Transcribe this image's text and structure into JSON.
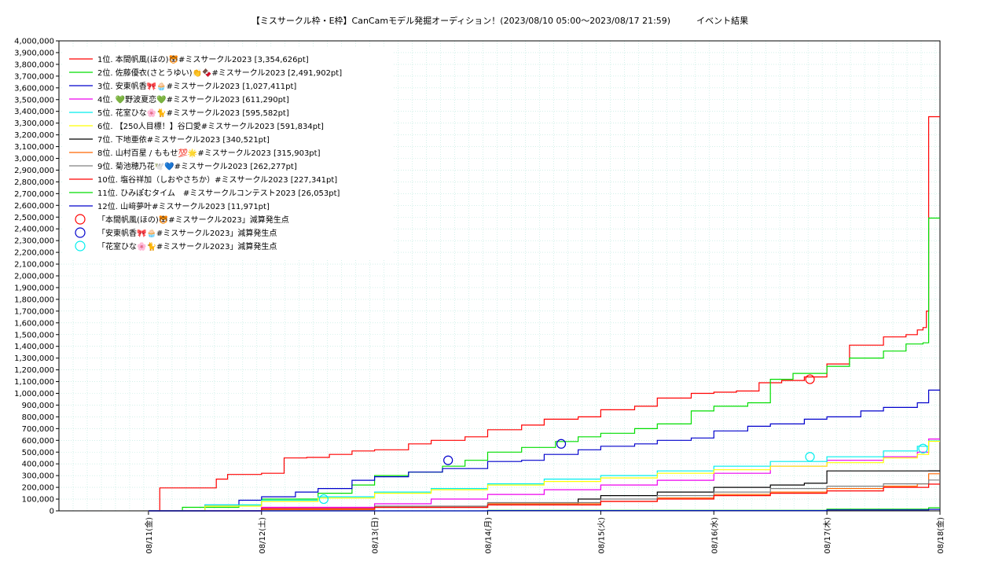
{
  "chart_data": {
    "type": "line",
    "title": "【ミスサークル枠・E枠】CanCamモデル発掘オーディション！(2023/08/10 05:00〜2023/08/17 21:59)　　　イベント結果",
    "xlabel": "",
    "ylabel": "",
    "ylim": [
      0,
      4000000
    ],
    "ytick_step": 100000,
    "x_range": [
      "08/10 05:00",
      "08/18 00:00"
    ],
    "x_tick_labels": [
      "08/11(金)",
      "08/12(土)",
      "08/13(日)",
      "08/14(月)",
      "08/15(火)",
      "08/16(水)",
      "08/17(木)",
      "08/18(金)"
    ],
    "grid": true,
    "legend_position": "top-left",
    "series": [
      {
        "name": "1位. 本間帆風(ほの)🐯#ミスサークル2023 [3,354,626pt]",
        "color": "#ff0000",
        "x": [
          0.08,
          0.1,
          0.5,
          0.6,
          0.7,
          1.0,
          1.2,
          1.4,
          1.6,
          1.8,
          2.0,
          2.3,
          2.5,
          2.8,
          3.0,
          3.3,
          3.5,
          3.8,
          4.0,
          4.3,
          4.5,
          4.8,
          5.0,
          5.2,
          5.4,
          5.6,
          5.7,
          5.8,
          6.0,
          6.2,
          6.5,
          6.7,
          6.8,
          6.85,
          6.88,
          6.9,
          7.0
        ],
        "y": [
          0,
          195000,
          195000,
          270000,
          310000,
          320000,
          450000,
          455000,
          480000,
          510000,
          520000,
          570000,
          600000,
          630000,
          690000,
          730000,
          780000,
          800000,
          860000,
          890000,
          960000,
          1000000,
          1010000,
          1020000,
          1090000,
          1110000,
          1110000,
          1140000,
          1250000,
          1410000,
          1480000,
          1500000,
          1540000,
          1560000,
          1700000,
          3354626,
          3354626
        ]
      },
      {
        "name": "2位. 佐藤優衣(さとうゆい)👏🍫#ミスサークル2023 [2,491,902pt]",
        "color": "#00dd00",
        "x": [
          0.0,
          0.3,
          0.8,
          1.0,
          1.5,
          1.8,
          2.0,
          2.3,
          2.6,
          2.8,
          3.0,
          3.3,
          3.6,
          3.8,
          4.0,
          4.3,
          4.5,
          4.8,
          5.0,
          5.3,
          5.5,
          5.7,
          5.85,
          6.0,
          6.2,
          6.5,
          6.7,
          6.85,
          6.9,
          7.0
        ],
        "y": [
          0,
          30000,
          50000,
          100000,
          150000,
          220000,
          300000,
          330000,
          380000,
          430000,
          500000,
          540000,
          590000,
          630000,
          660000,
          700000,
          740000,
          850000,
          890000,
          920000,
          1120000,
          1170000,
          1170000,
          1230000,
          1300000,
          1360000,
          1420000,
          1430000,
          2491902,
          2491902
        ]
      },
      {
        "name": "3位. 安東帆香🎀🧁#ミスサークル2023 [1,027,411pt]",
        "color": "#0000cc",
        "x": [
          0.0,
          0.5,
          0.8,
          1.0,
          1.3,
          1.5,
          1.8,
          2.0,
          2.3,
          2.6,
          3.0,
          3.3,
          3.5,
          3.8,
          4.0,
          4.3,
          4.5,
          4.8,
          5.0,
          5.3,
          5.5,
          5.8,
          6.0,
          6.3,
          6.5,
          6.8,
          6.9,
          7.0
        ],
        "y": [
          0,
          50000,
          90000,
          120000,
          160000,
          190000,
          260000,
          290000,
          330000,
          360000,
          420000,
          430000,
          480000,
          520000,
          550000,
          570000,
          600000,
          620000,
          680000,
          720000,
          740000,
          780000,
          800000,
          850000,
          880000,
          920000,
          1027411,
          1027411
        ]
      },
      {
        "name": "4位. 💚野波夏恋💚#ミスサークル2023 [611,290pt]",
        "color": "#ee00ee",
        "x": [
          0.0,
          1.0,
          2.0,
          2.5,
          3.0,
          3.5,
          4.0,
          4.5,
          5.0,
          5.5,
          6.0,
          6.5,
          6.8,
          6.9,
          7.0
        ],
        "y": [
          0,
          30000,
          60000,
          100000,
          140000,
          180000,
          220000,
          260000,
          320000,
          380000,
          430000,
          460000,
          500000,
          611290,
          611290
        ]
      },
      {
        "name": "5位. 花室ひな🌸🐈#ミスサークル2023 [595,582pt]",
        "color": "#00eeee",
        "x": [
          0.0,
          0.5,
          1.0,
          1.5,
          2.0,
          2.5,
          3.0,
          3.5,
          4.0,
          4.5,
          5.0,
          5.5,
          6.0,
          6.5,
          6.8,
          6.9,
          7.0
        ],
        "y": [
          0,
          50000,
          90000,
          120000,
          160000,
          190000,
          230000,
          270000,
          300000,
          340000,
          380000,
          420000,
          460000,
          510000,
          550000,
          595582,
          595582
        ]
      },
      {
        "name": "6位. 【250人目標！】谷口愛#ミスサークル2023 [591,834pt]",
        "color": "#ffff00",
        "x": [
          0.0,
          0.5,
          1.0,
          1.5,
          2.0,
          2.5,
          3.0,
          3.5,
          4.0,
          4.5,
          5.0,
          5.5,
          6.0,
          6.5,
          6.8,
          6.9,
          7.0
        ],
        "y": [
          0,
          40000,
          80000,
          110000,
          150000,
          180000,
          220000,
          250000,
          280000,
          320000,
          350000,
          380000,
          410000,
          450000,
          480000,
          591834,
          591834
        ]
      },
      {
        "name": "7位. 下地亜依#ミスサークル2023 [340,521pt]",
        "color": "#000000",
        "x": [
          0.0,
          1.0,
          2.0,
          3.0,
          3.8,
          4.0,
          4.5,
          5.0,
          5.5,
          5.8,
          6.0,
          6.5,
          6.8,
          6.9,
          7.0
        ],
        "y": [
          0,
          10000,
          30000,
          60000,
          100000,
          130000,
          160000,
          200000,
          220000,
          235000,
          340000,
          340000,
          340000,
          340521,
          340521
        ]
      },
      {
        "name": "8位. 山村百星 / ももせ💯🌟#ミスサークル2023 [315,903pt]",
        "color": "#ff6600",
        "x": [
          0.0,
          1.0,
          2.0,
          3.0,
          4.0,
          4.5,
          5.0,
          5.5,
          6.0,
          6.5,
          6.8,
          6.9,
          7.0
        ],
        "y": [
          0,
          10000,
          30000,
          60000,
          80000,
          110000,
          140000,
          160000,
          190000,
          210000,
          230000,
          315903,
          315903
        ]
      },
      {
        "name": "9位. 菊池穂乃花🕊️💙#ミスサークル2023 [262,277pt]",
        "color": "#808080",
        "x": [
          0.0,
          1.0,
          2.0,
          3.0,
          4.0,
          4.5,
          5.0,
          5.5,
          6.0,
          6.5,
          6.9,
          7.0
        ],
        "y": [
          0,
          20000,
          40000,
          70000,
          100000,
          130000,
          160000,
          190000,
          210000,
          230000,
          262277,
          262277
        ]
      },
      {
        "name": "10位. 塩谷祥加（しおやさちか）#ミスサークル2023 [227,341pt]",
        "color": "#ff0000",
        "x": [
          0.0,
          1.0,
          2.0,
          3.0,
          4.0,
          4.5,
          5.0,
          5.5,
          6.0,
          6.5,
          6.9,
          7.0
        ],
        "y": [
          0,
          20000,
          30000,
          50000,
          80000,
          100000,
          130000,
          150000,
          170000,
          200000,
          227341,
          227341
        ]
      },
      {
        "name": "11位. ひみぽむタイム　#ミスサークルコンテスト2023 [26,053pt]",
        "color": "#00dd00",
        "x": [
          0.0,
          3.0,
          6.0,
          6.9,
          7.0
        ],
        "y": [
          0,
          5000,
          15000,
          26053,
          26053
        ]
      },
      {
        "name": "12位. 山﨑夢叶#ミスサークル2023 [11,971pt]",
        "color": "#0000cc",
        "x": [
          0.0,
          3.0,
          6.0,
          6.9,
          7.0
        ],
        "y": [
          0,
          2000,
          8000,
          11971,
          11971
        ]
      }
    ],
    "penalty_markers": [
      {
        "name": "「本間帆風(ほの)🐯#ミスサークル2023」減算発生点",
        "color": "#ff0000",
        "points": [
          [
            5.85,
            1120000
          ]
        ]
      },
      {
        "name": "「安東帆香🎀🧁#ミスサークル2023」減算発生点",
        "color": "#0000cc",
        "points": [
          [
            2.65,
            430000
          ],
          [
            3.65,
            570000
          ]
        ]
      },
      {
        "name": "「花室ひな🌸🐈#ミスサークル2023」減算発生点",
        "color": "#00eeee",
        "points": [
          [
            1.55,
            100000
          ],
          [
            5.85,
            460000
          ],
          [
            6.85,
            530000
          ]
        ]
      }
    ]
  }
}
